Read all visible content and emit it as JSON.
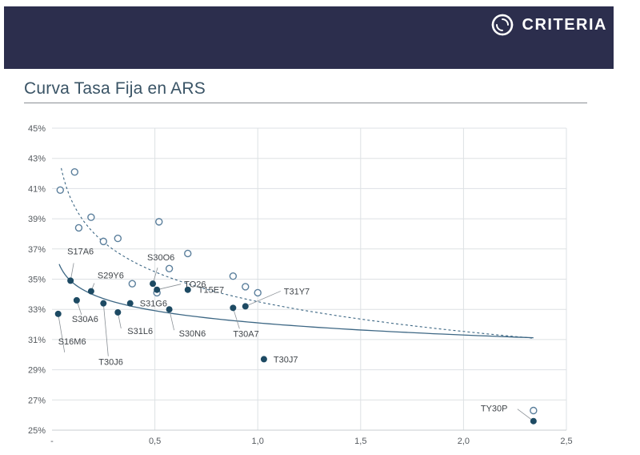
{
  "header": {
    "brand_name": "CRITERIA",
    "brand_color": "#2c2e4d",
    "logo_icon": "criteria-swirl-icon"
  },
  "page": {
    "title": "Curva Tasa Fija en ARS"
  },
  "chart_data": {
    "type": "scatter",
    "title": "Curva Tasa Fija en ARS",
    "xlabel": "",
    "ylabel": "",
    "xlim": [
      0,
      2.5
    ],
    "ylim": [
      25,
      45
    ],
    "x_ticks": [
      "-",
      "0,5",
      "1,0",
      "1,5",
      "2,0",
      "2,5"
    ],
    "y_ticks": [
      "25%",
      "27%",
      "29%",
      "31%",
      "33%",
      "35%",
      "37%",
      "39%",
      "41%",
      "43%",
      "45%"
    ],
    "grid": true,
    "colors": {
      "filled": "#1d4a63",
      "hollow": "#5b7f9c",
      "fit_solid": "#3d6784",
      "fit_dashed": "#3d6784"
    },
    "series": [
      {
        "marker": "hollow",
        "points": [
          {
            "x": 0.04,
            "y": 40.9
          },
          {
            "x": 0.11,
            "y": 42.1
          },
          {
            "x": 0.13,
            "y": 38.4
          },
          {
            "x": 0.19,
            "y": 39.1
          },
          {
            "x": 0.25,
            "y": 37.5
          },
          {
            "x": 0.32,
            "y": 37.7
          },
          {
            "x": 0.39,
            "y": 34.7
          },
          {
            "x": 0.52,
            "y": 38.8
          },
          {
            "x": 0.57,
            "y": 35.7
          },
          {
            "x": 0.66,
            "y": 36.7
          },
          {
            "x": 0.51,
            "y": 34.1
          },
          {
            "x": 0.88,
            "y": 35.2
          },
          {
            "x": 0.94,
            "y": 34.5
          },
          {
            "x": 1.0,
            "y": 34.1
          },
          {
            "x": 2.34,
            "y": 26.3
          }
        ]
      },
      {
        "marker": "filled",
        "points": [
          {
            "x": 0.03,
            "y": 32.7,
            "label": "S16M6"
          },
          {
            "x": 0.09,
            "y": 34.9,
            "label": "S17A6"
          },
          {
            "x": 0.12,
            "y": 33.6,
            "label": "S30A6"
          },
          {
            "x": 0.19,
            "y": 34.2,
            "label": "S29Y6"
          },
          {
            "x": 0.25,
            "y": 33.4,
            "label": "T30J6"
          },
          {
            "x": 0.32,
            "y": 32.8,
            "label": "S31L6"
          },
          {
            "x": 0.38,
            "y": 33.4,
            "label": "S31G6"
          },
          {
            "x": 0.49,
            "y": 34.7,
            "label": "S30O6"
          },
          {
            "x": 0.51,
            "y": 34.3,
            "label": "TO26"
          },
          {
            "x": 0.57,
            "y": 33.0,
            "label": "S30N6"
          },
          {
            "x": 0.66,
            "y": 34.3,
            "label": "T15E7"
          },
          {
            "x": 0.88,
            "y": 33.1,
            "label": "T30A7"
          },
          {
            "x": 0.94,
            "y": 33.2,
            "label": "T31Y7"
          },
          {
            "x": 1.03,
            "y": 29.7,
            "label": "T30J7"
          },
          {
            "x": 2.34,
            "y": 25.6,
            "label": "TY30P"
          }
        ]
      }
    ],
    "trendlines": [
      {
        "style": "dashed",
        "equation": "log"
      },
      {
        "style": "solid",
        "equation": "log"
      }
    ]
  }
}
